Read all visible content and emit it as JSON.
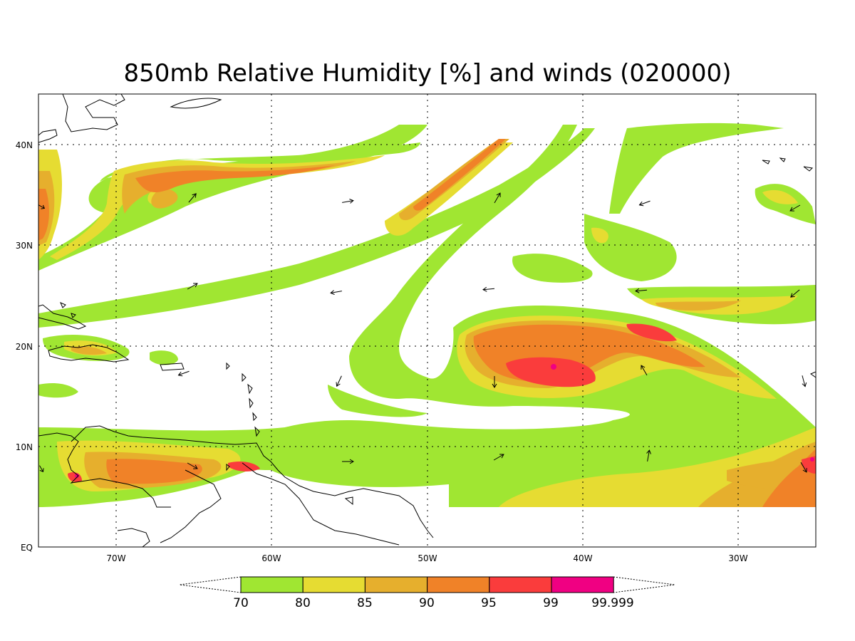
{
  "title": "850mb Relative Humidity [%] and winds (020000)",
  "map": {
    "longitude_labels": [
      "70W",
      "60W",
      "50W",
      "40W",
      "30W"
    ],
    "latitude_labels": [
      "40N",
      "30N",
      "20N",
      "10N",
      "EQ"
    ],
    "background": "#ffffff",
    "grid": true
  },
  "colorbar": {
    "labels": [
      "70",
      "80",
      "85",
      "90",
      "95",
      "99",
      "99.999"
    ],
    "colors": [
      "#a0e632",
      "#e6dc32",
      "#e6af2d",
      "#f08228",
      "#fa3c3c",
      "#f00082"
    ]
  },
  "legend_colors": {
    "rh_70": "#a0e632",
    "rh_80": "#e6dc32",
    "rh_85": "#e6af2d",
    "rh_90": "#f08228",
    "rh_95": "#fa3c3c",
    "rh_99": "#f00082"
  }
}
